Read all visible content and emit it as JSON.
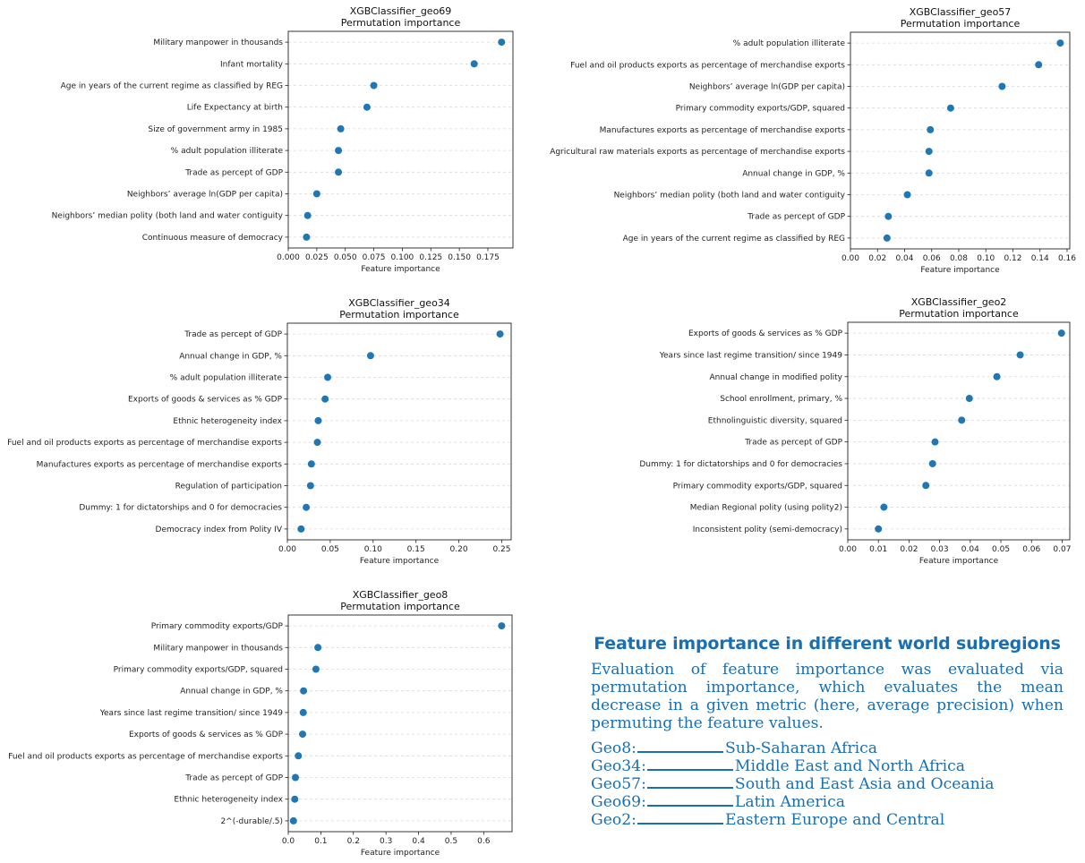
{
  "chart_data": [
    {
      "type": "scatter",
      "title": "XGBClassifier_geo69",
      "subtitle": "Permutation importance",
      "xlabel": "Feature importance",
      "categories": [
        "Military manpower in thousands",
        "Infant mortality",
        "Age in years of the current regime as classified by REG",
        "Life Expectancy at birth",
        "Size of government army in 1985",
        "% adult population illiterate",
        "Trade as percept of GDP",
        "Neighbors’ average ln(GDP per capita)",
        "Neighbors’ median polity (both land and water contiguity",
        "Continuous measure of democracy"
      ],
      "values": [
        0.187,
        0.163,
        0.075,
        0.069,
        0.046,
        0.044,
        0.044,
        0.025,
        0.017,
        0.016
      ],
      "xticks": [
        "0.000",
        "0.025",
        "0.050",
        "0.075",
        "0.100",
        "0.125",
        "0.150",
        "0.175"
      ],
      "xlim": [
        0,
        0.197
      ],
      "grid": "horizontal dashed",
      "color": "#1f77b4"
    },
    {
      "type": "scatter",
      "title": "XGBClassifier_geo57",
      "subtitle": "Permutation importance",
      "xlabel": "Feature importance",
      "categories": [
        "% adult population illiterate",
        "Fuel and oil products exports as percentage of  merchandise exports",
        "Neighbors’ average ln(GDP per capita)",
        "Primary commodity exports/GDP, squared",
        "Manufactures exports as percentage of  merchandise exports",
        "Agricultural raw materials exports as percentage of  merchandise exports",
        "Annual change in GDP, %",
        "Neighbors’ median polity (both land and water contiguity",
        "Trade as percept of GDP",
        "Age in years of the current regime as classified by REG"
      ],
      "values": [
        0.155,
        0.139,
        0.112,
        0.074,
        0.059,
        0.058,
        0.058,
        0.042,
        0.028,
        0.027
      ],
      "xticks": [
        "0.00",
        "0.02",
        "0.04",
        "0.06",
        "0.08",
        "0.10",
        "0.12",
        "0.14",
        "0.16"
      ],
      "xlim": [
        0,
        0.162
      ],
      "grid": "horizontal dashed",
      "color": "#1f77b4"
    },
    {
      "type": "scatter",
      "title": "XGBClassifier_geo34",
      "subtitle": "Permutation importance",
      "xlabel": "Feature importance",
      "categories": [
        "Trade as percept of GDP",
        "Annual change in GDP, %",
        "% adult population illiterate",
        "Exports of goods & services as % GDP",
        "Ethnic heterogeneity index",
        "Fuel and oil products exports as percentage of  merchandise exports",
        "Manufactures exports as percentage of  merchandise exports",
        "Regulation of participation",
        "Dummy: 1 for dictatorships and 0 for democracies",
        "Democracy index from Polity IV"
      ],
      "values": [
        0.248,
        0.097,
        0.047,
        0.044,
        0.036,
        0.035,
        0.028,
        0.027,
        0.022,
        0.016
      ],
      "xticks": [
        "0.00",
        "0.05",
        "0.10",
        "0.15",
        "0.20",
        "0.25"
      ],
      "xlim": [
        0,
        0.261
      ],
      "grid": "horizontal dashed",
      "color": "#1f77b4"
    },
    {
      "type": "scatter",
      "title": "XGBClassifier_geo2",
      "subtitle": "Permutation importance",
      "xlabel": "Feature importance",
      "categories": [
        "Exports of goods & services as % GDP",
        "Years since last regime transition/ since 1949",
        "Annual change in modified polity",
        "School enrollment, primary, %",
        "Ethnolinguistic diversity, squared",
        "Trade as percept of GDP",
        "Dummy: 1 for dictatorships and 0 for democracies",
        "Primary commodity exports/GDP, squared",
        "Median Regional polity (using polity2)",
        "Inconsistent polity (semi-democracy)"
      ],
      "values": [
        0.0698,
        0.0563,
        0.0487,
        0.0397,
        0.0372,
        0.0285,
        0.0277,
        0.0255,
        0.0118,
        0.01
      ],
      "xticks": [
        "0.00",
        "0.01",
        "0.02",
        "0.03",
        "0.04",
        "0.05",
        "0.06",
        "0.07"
      ],
      "xlim": [
        0,
        0.0725
      ],
      "grid": "horizontal dashed",
      "color": "#1f77b4"
    },
    {
      "type": "scatter",
      "title": "XGBClassifier_geo8",
      "subtitle": "Permutation importance",
      "xlabel": "Feature importance",
      "categories": [
        "Primary commodity exports/GDP",
        "Military manpower in thousands",
        "Primary commodity exports/GDP, squared",
        "Annual change in GDP, %",
        "Years since last regime transition/ since 1949",
        "Exports of goods & services as % GDP",
        "Fuel and oil products exports as percentage of  merchandise exports",
        "Trade as percept of GDP",
        "Ethnic heterogeneity index",
        "2^(-durable/.5)"
      ],
      "values": [
        0.655,
        0.091,
        0.085,
        0.047,
        0.046,
        0.044,
        0.031,
        0.022,
        0.02,
        0.016
      ],
      "xticks": [
        "0.0",
        "0.1",
        "0.2",
        "0.3",
        "0.4",
        "0.5",
        "0.6"
      ],
      "xlim": [
        0,
        0.687
      ],
      "grid": "horizontal dashed",
      "color": "#1f77b4"
    }
  ],
  "note": {
    "heading": "Feature importance in different world subregions",
    "body": "Evaluation of feature importance was evaluated via permutation importance, which evaluates the mean decrease in a given metric (here, average precision) when permuting the feature values.",
    "legend": [
      {
        "code": "Geo8:",
        "region": "Sub-Saharan Africa"
      },
      {
        "code": "Geo34:",
        "region": "Middle East and North Africa"
      },
      {
        "code": "Geo57:",
        "region": "South and East Asia and Oceania"
      },
      {
        "code": "Geo69:",
        "region": "Latin America"
      },
      {
        "code": "Geo2:",
        "region": "Eastern Europe and Central"
      }
    ]
  },
  "colors": {
    "marker": "#1f77b4",
    "note_text": "#1a6fb2"
  }
}
